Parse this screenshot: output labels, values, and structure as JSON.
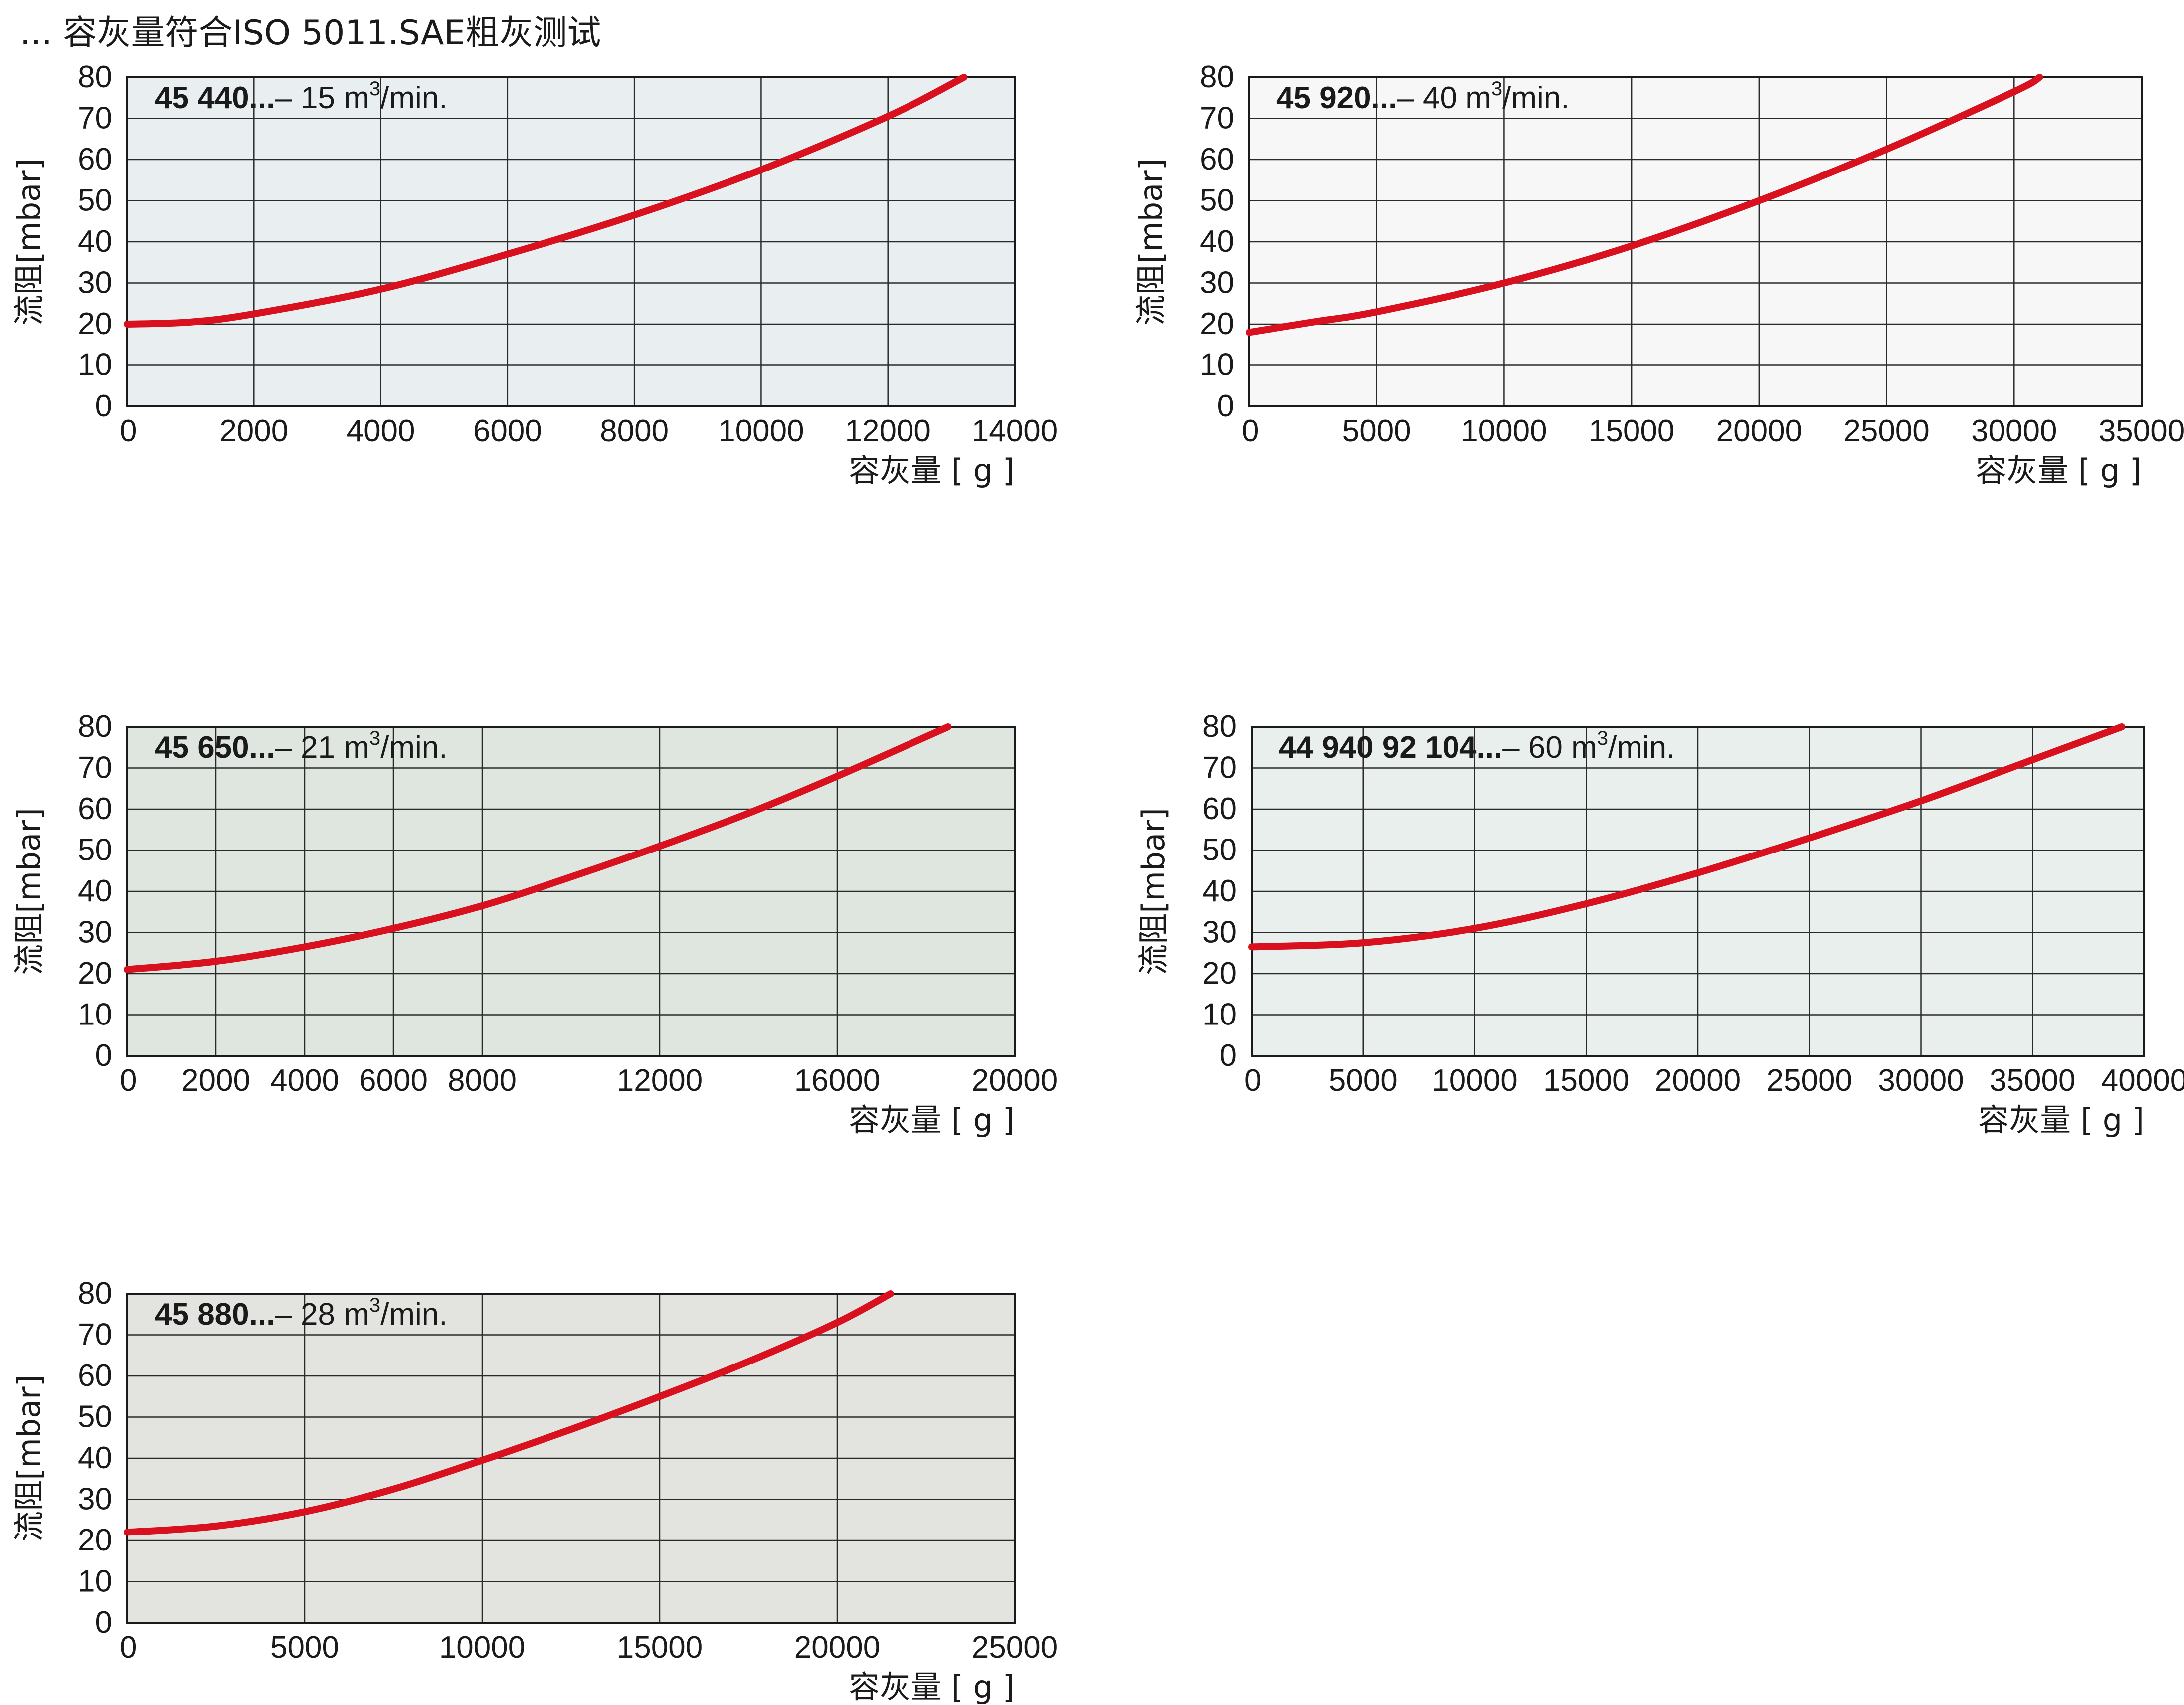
{
  "page": {
    "title": "... 容灰量符合ISO 5011.SAE粗灰测试"
  },
  "chart_data": [
    {
      "type": "line",
      "model": "45  440...",
      "flow_text": "– 15 m",
      "flow_sup": "3",
      "flow_suffix": "/min.",
      "xlabel": "容灰量 [ g ]",
      "ylabel": "流阻[mbar]",
      "xlim": [
        0,
        14000
      ],
      "ylim": [
        0,
        80
      ],
      "x_ticks": [
        0,
        2000,
        4000,
        6000,
        8000,
        10000,
        12000,
        14000
      ],
      "y_ticks": [
        0,
        10,
        20,
        30,
        40,
        50,
        60,
        70,
        80
      ],
      "grid": true,
      "background": "#e9eef0",
      "series": [
        {
          "color": "#d9111f",
          "x": [
            0,
            1000,
            2000,
            4000,
            6000,
            8000,
            10000,
            12000,
            13200
          ],
          "y": [
            20,
            20.5,
            22.5,
            28.5,
            37,
            46.5,
            57.5,
            70.5,
            80
          ]
        }
      ]
    },
    {
      "type": "line",
      "model": "45 920...",
      "flow_text": "– 40 m",
      "flow_sup": "3",
      "flow_suffix": "/min.",
      "xlabel": "容灰量 [ g ]",
      "ylabel": "流阻[mbar]",
      "xlim": [
        0,
        35000
      ],
      "ylim": [
        0,
        80
      ],
      "x_ticks": [
        0,
        5000,
        10000,
        15000,
        20000,
        25000,
        30000,
        35000
      ],
      "y_ticks": [
        0,
        10,
        20,
        30,
        40,
        50,
        60,
        70,
        80
      ],
      "grid": true,
      "background": "#f7f7f7",
      "series": [
        {
          "color": "#d9111f",
          "x": [
            0,
            2500,
            5000,
            10000,
            15000,
            20000,
            25000,
            30000,
            31000
          ],
          "y": [
            18,
            20.5,
            23,
            30,
            39,
            50,
            62.5,
            76.5,
            80
          ]
        }
      ]
    },
    {
      "type": "line",
      "model": "45  650...",
      "flow_text": "– 21 m",
      "flow_sup": "3",
      "flow_suffix": "/min.",
      "xlabel": "容灰量 [ g ]",
      "ylabel": "流阻[mbar]",
      "xlim": [
        0,
        20000
      ],
      "ylim": [
        0,
        80
      ],
      "x_ticks": [
        0,
        2000,
        4000,
        6000,
        8000,
        12000,
        16000,
        20000
      ],
      "y_ticks": [
        0,
        10,
        20,
        30,
        40,
        50,
        60,
        70,
        80
      ],
      "grid": true,
      "background": "#dfe6e0",
      "series": [
        {
          "color": "#d9111f",
          "x": [
            0,
            2000,
            4000,
            6000,
            8000,
            10000,
            12000,
            14000,
            16000,
            18500
          ],
          "y": [
            21,
            23,
            26.5,
            31,
            36.5,
            43.5,
            51,
            59,
            68,
            80
          ]
        }
      ]
    },
    {
      "type": "line",
      "model": "44 940 92 104...",
      "flow_text": "– 60 m",
      "flow_sup": "3",
      "flow_suffix": "/min.",
      "xlabel": "容灰量 [ g ]",
      "ylabel": "流阻[mbar]",
      "xlim": [
        0,
        40000
      ],
      "ylim": [
        0,
        80
      ],
      "x_ticks": [
        0,
        5000,
        10000,
        15000,
        20000,
        25000,
        30000,
        35000,
        40000
      ],
      "y_ticks": [
        0,
        10,
        20,
        30,
        40,
        50,
        60,
        70,
        80
      ],
      "grid": true,
      "background": "#e8efec",
      "series": [
        {
          "color": "#d9111f",
          "x": [
            0,
            5000,
            10000,
            15000,
            20000,
            25000,
            30000,
            35000,
            39000
          ],
          "y": [
            26.5,
            27.5,
            31,
            37,
            44.5,
            53,
            62,
            72,
            80
          ]
        }
      ]
    },
    {
      "type": "line",
      "model": "45  880...",
      "flow_text": "– 28 m",
      "flow_sup": "3",
      "flow_suffix": "/min.",
      "xlabel": "容灰量 [ g ]",
      "ylabel": "流阻[mbar]",
      "xlim": [
        0,
        25000
      ],
      "ylim": [
        0,
        80
      ],
      "x_ticks": [
        0,
        5000,
        10000,
        15000,
        20000,
        25000
      ],
      "y_ticks": [
        0,
        10,
        20,
        30,
        40,
        50,
        60,
        70,
        80
      ],
      "grid": true,
      "background": "#e3e4e0",
      "series": [
        {
          "color": "#d9111f",
          "x": [
            0,
            2500,
            5000,
            7500,
            10000,
            12500,
            15000,
            17500,
            20000,
            21500
          ],
          "y": [
            22,
            23.5,
            27,
            32.5,
            39.5,
            47,
            55,
            63.5,
            73,
            80
          ]
        }
      ]
    }
  ]
}
